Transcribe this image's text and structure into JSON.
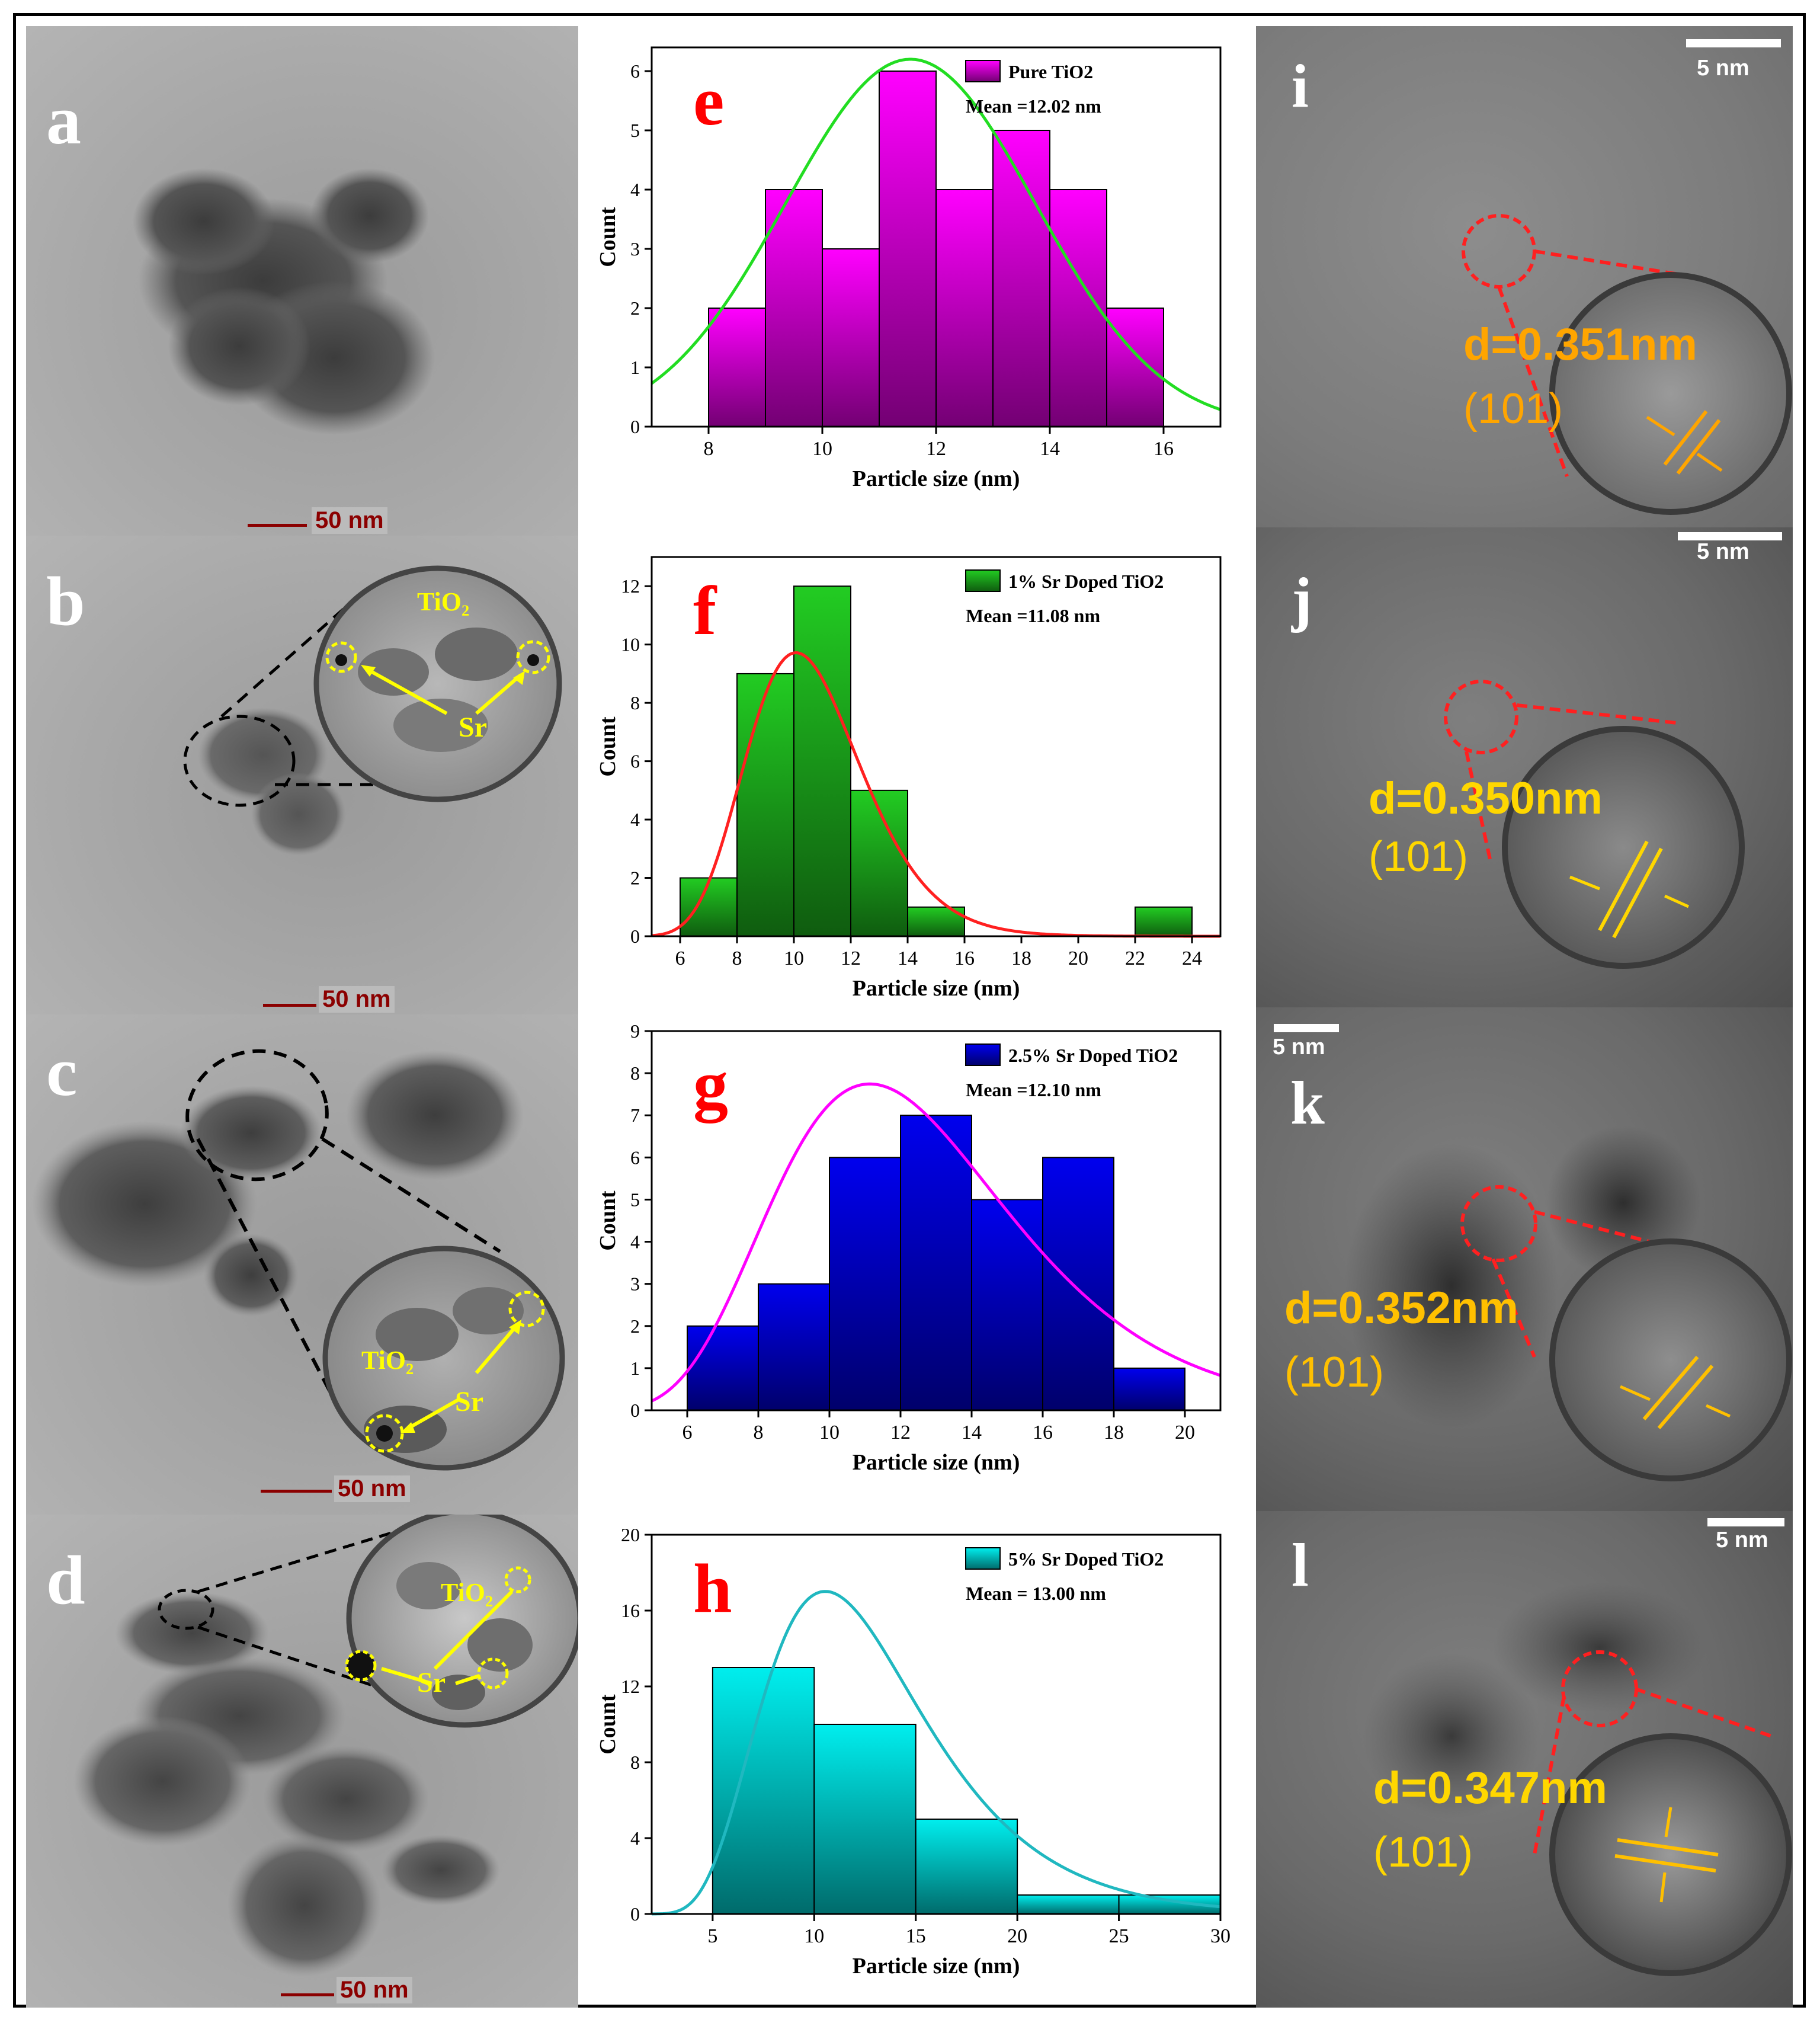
{
  "tem_panels": [
    {
      "letter": "a",
      "scale": "50 nm"
    },
    {
      "letter": "b",
      "scale": "50 nm",
      "label_tio2": "TiO₂",
      "label_sr": "Sr"
    },
    {
      "letter": "c",
      "scale": "50 nm",
      "label_tio2": "TiO₂",
      "label_sr": "Sr"
    },
    {
      "letter": "d",
      "scale": "50 nm",
      "label_tio2": "TiO₂",
      "label_sr": "Sr"
    }
  ],
  "hrtem_panels": [
    {
      "letter": "i",
      "scale": "5 nm",
      "d_spacing": "d=0.351nm",
      "plane": "(101)"
    },
    {
      "letter": "j",
      "scale": "5 nm",
      "d_spacing": "d=0.350nm",
      "plane": "(101)"
    },
    {
      "letter": "k",
      "scale": "5 nm",
      "d_spacing": "d=0.352nm",
      "plane": "(101)"
    },
    {
      "letter": "l",
      "scale": "5 nm",
      "d_spacing": "d=0.347nm",
      "plane": "(101)"
    }
  ],
  "colors": {
    "panel_letter_chart": "#ff0000",
    "tem_label": "#ffff00",
    "hr_label_i": "#ffa500",
    "hr_label_j": "#ffd700"
  },
  "chart_data": [
    {
      "type": "bar",
      "letter": "e",
      "legend": "Pure TiO2",
      "mean": "Mean =12.02 nm",
      "xlabel": "Particle size (nm)",
      "ylabel": "Count",
      "xlim": [
        7,
        17
      ],
      "ylim": [
        0,
        6.4
      ],
      "xticks": [
        8,
        10,
        12,
        14,
        16
      ],
      "yticks": [
        0,
        1,
        2,
        3,
        4,
        5,
        6
      ],
      "bin_edges": [
        8,
        9,
        10,
        11,
        12,
        13,
        14,
        15,
        16
      ],
      "values": [
        2,
        4,
        3,
        6,
        4,
        5,
        4,
        2
      ],
      "fit": {
        "mu": 11.55,
        "sigma": 2.2,
        "peak": 6.2
      },
      "bar_color": "#ff00ff",
      "fit_color": "#22dd22"
    },
    {
      "type": "bar",
      "letter": "f",
      "legend": "1% Sr Doped TiO2",
      "mean": "Mean =11.08 nm",
      "xlabel": "Particle size (nm)",
      "ylabel": "Count",
      "xlim": [
        5,
        25
      ],
      "ylim": [
        0,
        13
      ],
      "xticks": [
        6,
        8,
        10,
        12,
        14,
        16,
        18,
        20,
        22,
        24
      ],
      "yticks": [
        0,
        2,
        4,
        6,
        8,
        10,
        12
      ],
      "bin_edges": [
        6,
        8,
        10,
        12,
        14,
        16,
        18,
        20,
        22,
        24
      ],
      "values": [
        2,
        9,
        12,
        5,
        1,
        0,
        0,
        0,
        1
      ],
      "fit": {
        "lognormal": true,
        "mu": 2.35,
        "sigma": 0.2,
        "peak": 9.7,
        "mode": 10.2
      },
      "bar_color": "#22cc22",
      "fit_color": "#ff2020"
    },
    {
      "type": "bar",
      "letter": "g",
      "legend": "2.5% Sr Doped TiO2",
      "mean": "Mean =12.10 nm",
      "xlabel": "Particle size (nm)",
      "ylabel": "Count",
      "xlim": [
        5,
        21
      ],
      "ylim": [
        0,
        9
      ],
      "xticks": [
        6,
        8,
        10,
        12,
        14,
        16,
        18,
        20
      ],
      "yticks": [
        0,
        1,
        2,
        3,
        4,
        5,
        6,
        7,
        8,
        9
      ],
      "bin_edges": [
        6,
        8,
        10,
        12,
        14,
        16,
        18,
        20
      ],
      "values": [
        2,
        3,
        6,
        7,
        5,
        6,
        1
      ],
      "fit": {
        "lognormal": true,
        "mu": 2.5,
        "sigma": 0.3,
        "peak": 7.6,
        "mode": 11.8
      },
      "bar_color": "#0000ee",
      "fit_color": "#ff00ff"
    },
    {
      "type": "bar",
      "letter": "h",
      "legend": "5% Sr Doped TiO2",
      "mean": "Mean = 13.00  nm",
      "xlabel": "Particle size (nm)",
      "ylabel": "Count",
      "xlim": [
        2,
        30
      ],
      "ylim": [
        0,
        20
      ],
      "xticks": [
        5,
        10,
        15,
        20,
        25,
        30
      ],
      "yticks": [
        0,
        4,
        8,
        12,
        16,
        20
      ],
      "bin_edges": [
        5,
        10,
        15,
        20,
        25,
        30
      ],
      "values": [
        13,
        10,
        5,
        1,
        1
      ],
      "fit": {
        "lognormal": true,
        "mu": 2.5,
        "sigma": 0.38,
        "peak": 17,
        "mode": 10.4
      },
      "bar_color": "#00eeee",
      "fit_color": "#20b8c0"
    }
  ]
}
